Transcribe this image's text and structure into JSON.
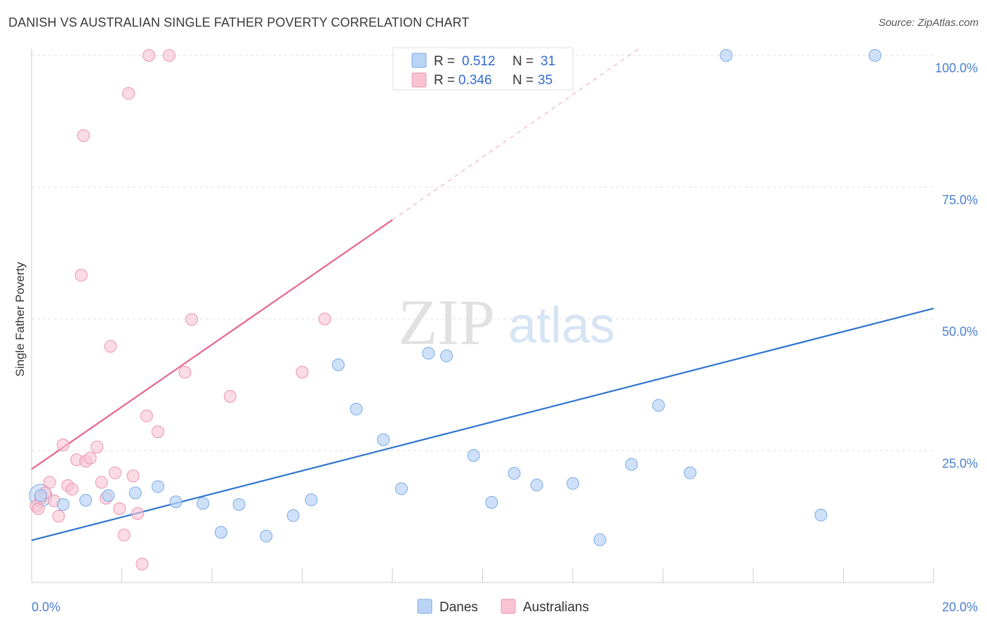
{
  "title": "DANISH VS AUSTRALIAN SINGLE FATHER POVERTY CORRELATION CHART",
  "source": "Source: ZipAtlas.com",
  "colors": {
    "danes_fill": "#b9d4f5",
    "danes_stroke": "#7aaae6",
    "danes_line": "#2f74d0",
    "aus_fill": "#f8c3d2",
    "aus_stroke": "#ec93ad",
    "aus_line": "#e6648f",
    "tick_text": "#4a7fd0",
    "grid": "#e2e2e2"
  },
  "stats": {
    "r_label": "R =",
    "n_label": "N =",
    "danes": {
      "r": "0.512",
      "n": "31"
    },
    "australians": {
      "r": "0.346",
      "n": "35"
    }
  },
  "watermark": {
    "zip": "ZIP",
    "atlas": "atlas"
  },
  "chart_data": {
    "type": "scatter",
    "title": "DANISH VS AUSTRALIAN SINGLE FATHER POVERTY CORRELATION CHART",
    "xlabel": "",
    "ylabel": "Single Father Poverty",
    "xlim": [
      0,
      20
    ],
    "ylim": [
      0,
      102
    ],
    "x_tick_labels": [
      "0.0%",
      "20.0%"
    ],
    "y_ticks": [
      25,
      50,
      75,
      100
    ],
    "y_tick_labels": [
      "25.0%",
      "50.0%",
      "75.0%",
      "100.0%"
    ],
    "grid": true,
    "legend_position": "bottom-center",
    "series": [
      {
        "name": "Danes",
        "points": [
          [
            0.2,
            16.5
          ],
          [
            0.7,
            14.8
          ],
          [
            1.2,
            15.6
          ],
          [
            1.7,
            16.5
          ],
          [
            2.3,
            17.0
          ],
          [
            2.8,
            18.2
          ],
          [
            3.2,
            15.3
          ],
          [
            3.8,
            15.0
          ],
          [
            4.2,
            9.5
          ],
          [
            4.6,
            14.8
          ],
          [
            5.2,
            8.8
          ],
          [
            5.8,
            12.7
          ],
          [
            6.2,
            15.7
          ],
          [
            6.8,
            41.3
          ],
          [
            7.2,
            32.9
          ],
          [
            7.8,
            27.1
          ],
          [
            8.2,
            17.8
          ],
          [
            8.8,
            43.5
          ],
          [
            9.2,
            43.0
          ],
          [
            9.8,
            24.1
          ],
          [
            10.2,
            15.2
          ],
          [
            10.7,
            20.7
          ],
          [
            11.2,
            18.5
          ],
          [
            12.0,
            18.8
          ],
          [
            12.6,
            8.1
          ],
          [
            13.3,
            22.4
          ],
          [
            13.9,
            33.6
          ],
          [
            14.6,
            20.8
          ],
          [
            15.4,
            100.0
          ],
          [
            17.5,
            12.8
          ],
          [
            18.7,
            100.0
          ]
        ],
        "trend": {
          "x": [
            0,
            20
          ],
          "y": [
            8.0,
            52.0
          ]
        }
      },
      {
        "name": "Australians",
        "points": [
          [
            0.1,
            14.5
          ],
          [
            0.15,
            14.0
          ],
          [
            0.3,
            17.0
          ],
          [
            0.4,
            19.0
          ],
          [
            0.5,
            15.5
          ],
          [
            0.6,
            12.6
          ],
          [
            0.7,
            26.1
          ],
          [
            0.8,
            18.4
          ],
          [
            0.9,
            17.7
          ],
          [
            1.0,
            23.3
          ],
          [
            1.1,
            58.3
          ],
          [
            1.15,
            84.8
          ],
          [
            1.2,
            23.0
          ],
          [
            1.3,
            23.6
          ],
          [
            1.45,
            25.7
          ],
          [
            1.55,
            19.0
          ],
          [
            1.65,
            16.0
          ],
          [
            1.75,
            44.8
          ],
          [
            1.85,
            20.8
          ],
          [
            1.95,
            14.0
          ],
          [
            2.05,
            9.0
          ],
          [
            2.15,
            92.8
          ],
          [
            2.25,
            20.2
          ],
          [
            2.35,
            13.1
          ],
          [
            2.45,
            3.5
          ],
          [
            2.55,
            31.6
          ],
          [
            2.6,
            100.0
          ],
          [
            2.8,
            28.6
          ],
          [
            3.05,
            100.0
          ],
          [
            3.4,
            39.9
          ],
          [
            3.55,
            49.9
          ],
          [
            4.4,
            35.3
          ],
          [
            6.0,
            39.9
          ],
          [
            6.5,
            50.0
          ],
          [
            0.2,
            16.0
          ]
        ],
        "trend": {
          "x": [
            0,
            8
          ],
          "y": [
            21.5,
            68.8
          ]
        },
        "trend_dashed": {
          "x": [
            8,
            13.5
          ],
          "y": [
            68.8,
            101.5
          ]
        }
      }
    ]
  },
  "legend": {
    "items": [
      "Danes",
      "Australians"
    ]
  }
}
